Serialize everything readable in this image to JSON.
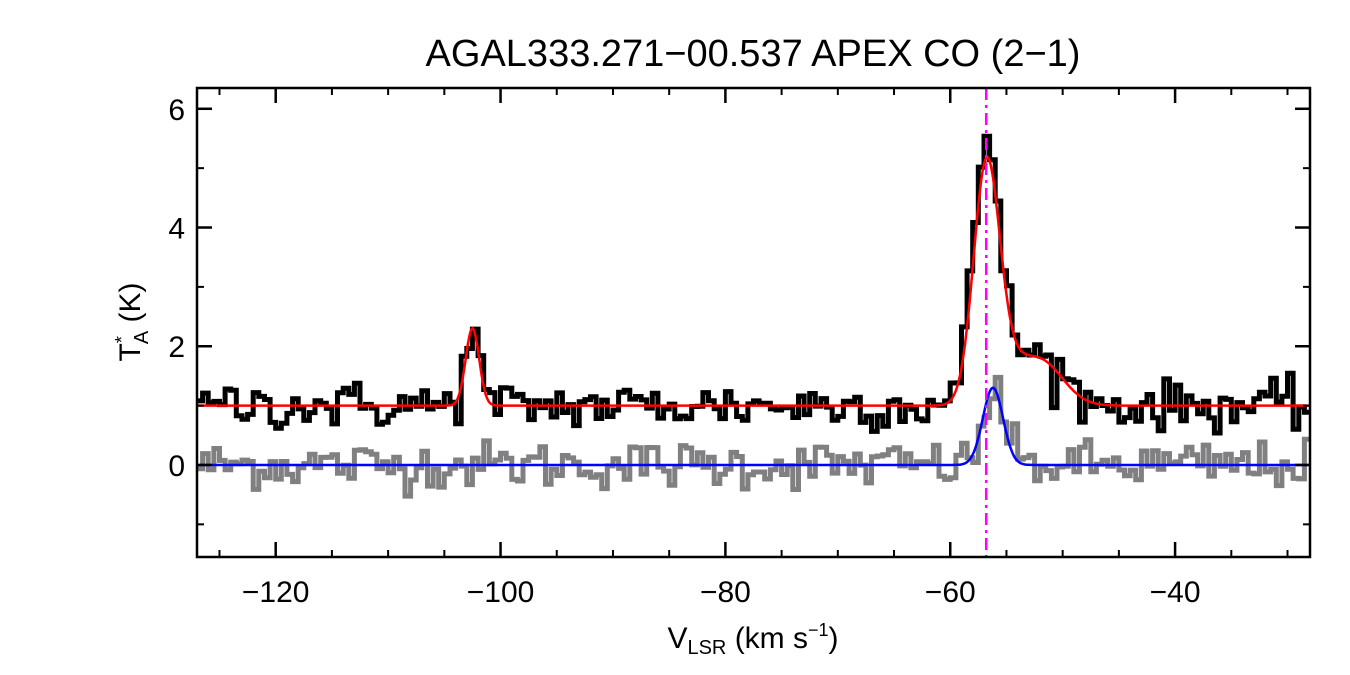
{
  "chart_data": {
    "type": "line",
    "title": "AGAL333.271−00.537  APEX CO (2−1)",
    "xlabel": {
      "main": "V",
      "sub": "LSR",
      "unit_open": " (km s",
      "unit_sup": "−1",
      "unit_close": ")"
    },
    "ylabel": {
      "main": "T",
      "sup": "*",
      "sub": "A",
      "unit": " (K)"
    },
    "xlim": [
      -127,
      -28
    ],
    "ylim": [
      -1.55,
      6.35
    ],
    "x_ticks": [
      {
        "value": -120,
        "label": "−120"
      },
      {
        "value": -100,
        "label": "−100"
      },
      {
        "value": -80,
        "label": "−80"
      },
      {
        "value": -60,
        "label": "−60"
      },
      {
        "value": -40,
        "label": "−40"
      }
    ],
    "y_ticks": [
      {
        "value": 0,
        "label": "0"
      },
      {
        "value": 2,
        "label": "2"
      },
      {
        "value": 4,
        "label": "4"
      },
      {
        "value": 6,
        "label": "6"
      }
    ],
    "channel_width_kms": 0.5,
    "noise_rms_K": 0.2,
    "reference_line": {
      "x": -56.8,
      "color": "#ff00ff",
      "style": "dash-dot"
    },
    "series": [
      {
        "name": "observed spectrum (offset +1 K)",
        "style": "step",
        "color": "#000000",
        "baseline_offset": 1.0,
        "components": [
          {
            "center": -102.5,
            "amplitude": 1.35,
            "sigma": 0.6
          },
          {
            "center": -56.8,
            "amplitude": 4.1,
            "sigma": 1.15
          },
          {
            "center": -55.5,
            "amplitude": 0.6,
            "sigma": 1.5
          },
          {
            "center": -52.0,
            "amplitude": 0.8,
            "sigma": 2.0
          }
        ]
      },
      {
        "name": "gaussian fit",
        "style": "line",
        "color": "#ff0000",
        "baseline_offset": 1.0,
        "components": [
          {
            "center": -102.5,
            "amplitude": 1.3,
            "sigma": 0.6
          },
          {
            "center": -56.8,
            "amplitude": 3.85,
            "sigma": 1.15
          },
          {
            "center": -55.2,
            "amplitude": 0.5,
            "sigma": 1.5
          },
          {
            "center": -52.0,
            "amplitude": 0.75,
            "sigma": 2.0
          }
        ]
      },
      {
        "name": "residual spectrum",
        "style": "step",
        "color": "#808080",
        "baseline_offset": 0.0,
        "components": [
          {
            "center": -56.0,
            "amplitude": 1.3,
            "sigma": 0.9
          }
        ]
      },
      {
        "name": "residual fit",
        "style": "line",
        "color": "#0000ff",
        "baseline_offset": 0.0,
        "components": [
          {
            "center": -56.2,
            "amplitude": 1.3,
            "sigma": 0.9
          }
        ]
      }
    ]
  }
}
